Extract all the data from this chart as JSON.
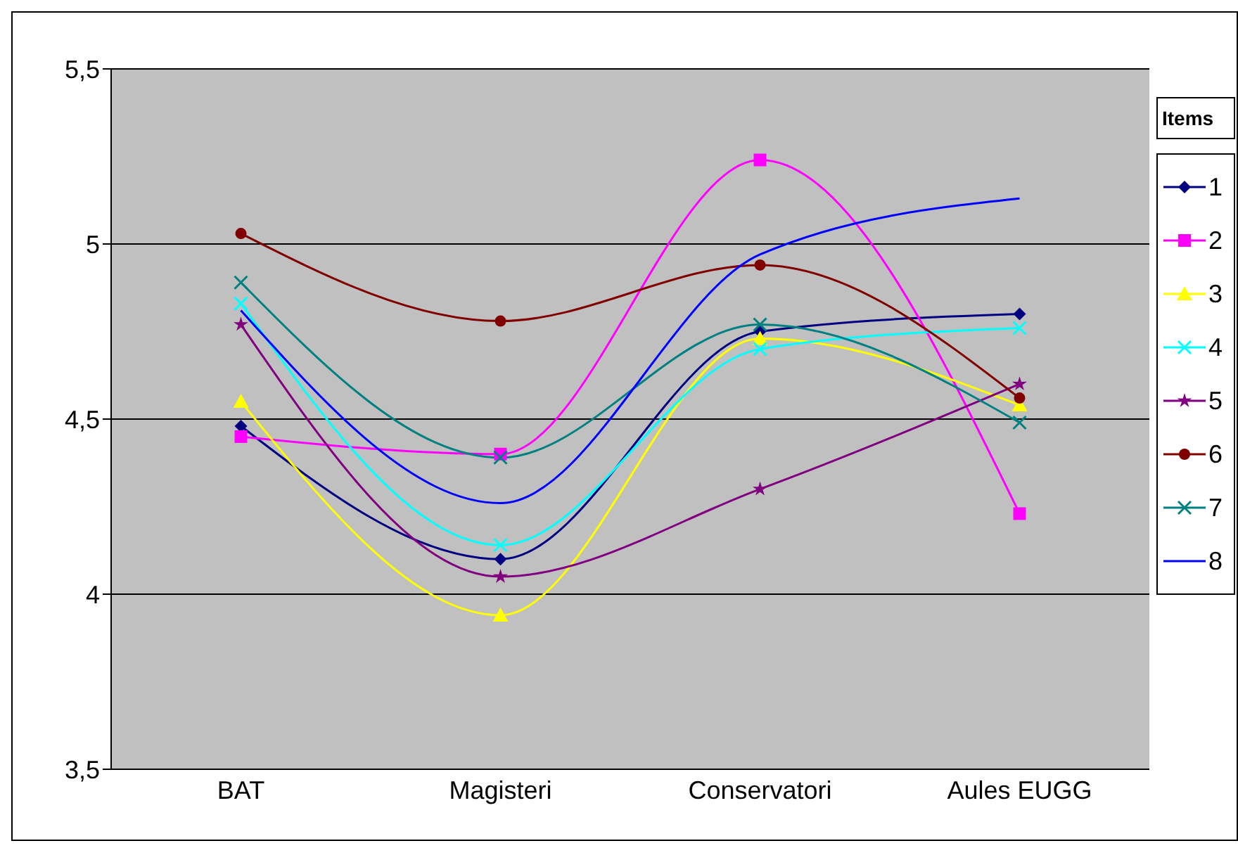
{
  "chart_data": {
    "type": "line",
    "categories": [
      "BAT",
      "Magisteri",
      "Conservatori",
      "Aules EUGG"
    ],
    "legend_title": "Items",
    "legend": "right",
    "grid": "y",
    "ylim": [
      3.5,
      5.5
    ],
    "yticks": [
      {
        "value": 3.5,
        "label": "3,5"
      },
      4,
      {
        "value": 4.5,
        "label": "4,5"
      },
      5,
      {
        "value": 5.5,
        "label": "5,5"
      }
    ],
    "series": [
      {
        "name": "1",
        "color": "#000080",
        "marker": "diamond",
        "values": [
          4.48,
          4.1,
          4.75,
          4.8
        ]
      },
      {
        "name": "2",
        "color": "#ff00ff",
        "marker": "square",
        "values": [
          4.45,
          4.4,
          5.24,
          4.23
        ]
      },
      {
        "name": "3",
        "color": "#ffff00",
        "marker": "triangle",
        "values": [
          4.55,
          3.94,
          4.73,
          4.54
        ]
      },
      {
        "name": "4",
        "color": "#00ffff",
        "marker": "cross",
        "values": [
          4.83,
          4.14,
          4.7,
          4.76
        ]
      },
      {
        "name": "5",
        "color": "#800080",
        "marker": "star",
        "values": [
          4.77,
          4.05,
          4.3,
          4.6
        ]
      },
      {
        "name": "6",
        "color": "#800000",
        "marker": "circle",
        "values": [
          5.03,
          4.78,
          4.94,
          4.56
        ]
      },
      {
        "name": "7",
        "color": "#008080",
        "marker": "cross",
        "values": [
          4.89,
          4.39,
          4.77,
          4.49
        ]
      },
      {
        "name": "8",
        "color": "#0000ff",
        "marker": "none",
        "values": [
          4.81,
          4.26,
          4.97,
          5.13
        ]
      }
    ]
  }
}
